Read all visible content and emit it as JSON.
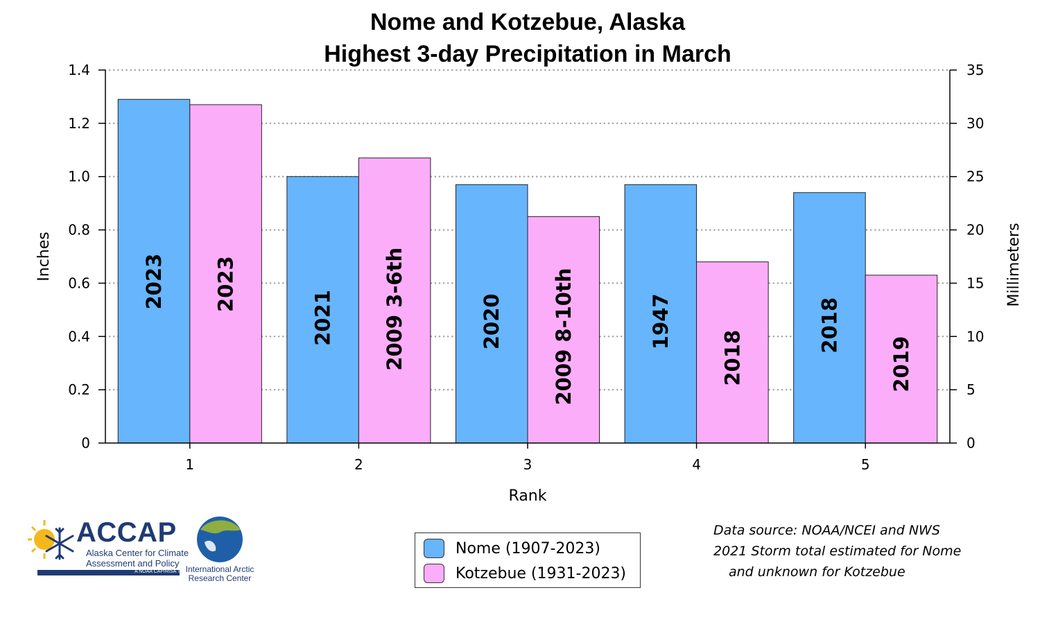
{
  "chart_data": {
    "type": "bar",
    "title": [
      "Nome and Kotzebue, Alaska",
      "Highest 3-day Precipitation in March"
    ],
    "xlabel": "Rank",
    "ylabel": "Inches",
    "ylabel_right": "Millimeters",
    "categories": [
      "1",
      "2",
      "3",
      "4",
      "5"
    ],
    "ylim": [
      0,
      1.4
    ],
    "ylim_right": [
      0,
      35
    ],
    "yticks": [
      "0",
      "0.2",
      "0.4",
      "0.6",
      "0.8",
      "1.0",
      "1.2",
      "1.4"
    ],
    "yticks_right": [
      "0",
      "5",
      "10",
      "15",
      "20",
      "25",
      "30",
      "35"
    ],
    "grid": "horizontal dotted",
    "series": [
      {
        "name": "Nome (1907-2023)",
        "color": "#66b5fd",
        "values": [
          1.29,
          1.0,
          0.97,
          0.97,
          0.94
        ],
        "bar_labels": [
          "2023",
          "2021",
          "2020",
          "1947",
          "2018"
        ]
      },
      {
        "name": "Kotzebue (1931-2023)",
        "color": "#fcadfa",
        "values": [
          1.27,
          1.07,
          0.85,
          0.68,
          0.63
        ],
        "bar_labels": [
          "2023",
          "2009 3-6th",
          "2009 8-10th",
          "2018",
          "2019"
        ]
      }
    ],
    "legend_position": "bottom-center"
  },
  "notes": [
    "Data source: NOAA/NCEI and NWS",
    "2021 Storm total estimated for Nome",
    "and unknown for Kotzebue"
  ],
  "logos": {
    "accap": {
      "name": "ACCAP",
      "line1": "Alaska Center for Climate",
      "line2": "Assessment and Policy",
      "tag": "A NOAA CAP/RISA Team",
      "colors": {
        "navy": "#1f3b73",
        "sun": "#f5b81c"
      }
    },
    "iarc": {
      "line1": "International Arctic",
      "line2": "Research Center",
      "colors": {
        "ocean": "#1f5fa8",
        "land": "#8fae3f"
      }
    }
  }
}
